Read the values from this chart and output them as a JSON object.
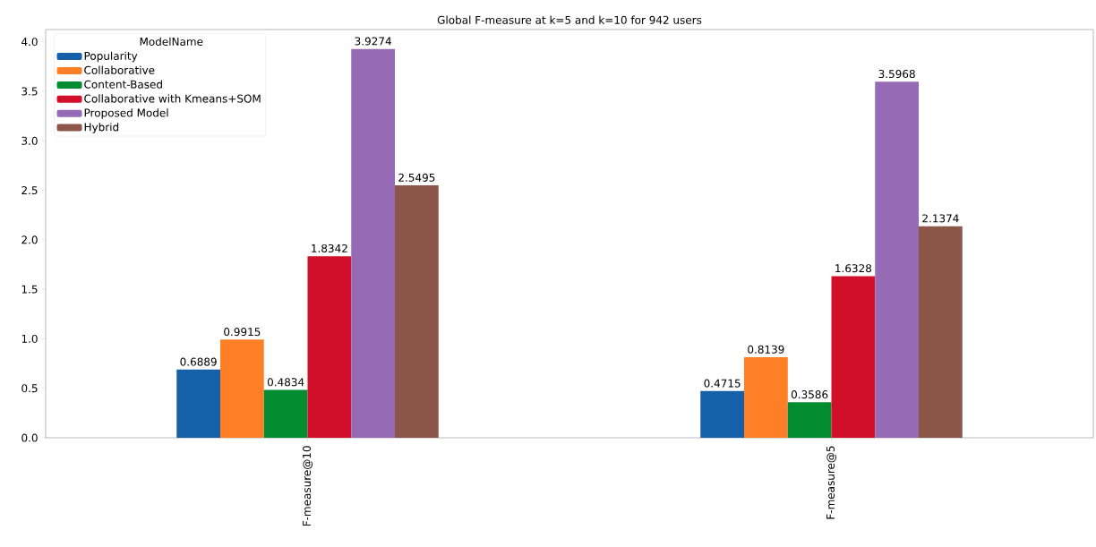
{
  "chart_data": {
    "type": "bar",
    "title": "Global F-measure at k=5 and k=10 for 942 users",
    "categories": [
      "F-measure@10",
      "F-measure@5"
    ],
    "series": [
      {
        "name": "Popularity",
        "color": "#1560a8",
        "values": [
          0.6889,
          0.4715
        ]
      },
      {
        "name": "Collaborative",
        "color": "#ff7f27",
        "values": [
          0.9915,
          0.8139
        ]
      },
      {
        "name": "Content-Based",
        "color": "#038c32",
        "values": [
          0.4834,
          0.3586
        ]
      },
      {
        "name": "Collaborative with Kmeans+SOM",
        "color": "#d20f2b",
        "values": [
          1.8342,
          1.6328
        ]
      },
      {
        "name": "Proposed Model",
        "color": "#966ab4",
        "values": [
          3.9274,
          3.5968
        ]
      },
      {
        "name": "Hybrid",
        "color": "#8c564b",
        "values": [
          2.5495,
          2.1374
        ]
      }
    ],
    "legend_title": "ModelName",
    "legend": "top left",
    "data_labels": true,
    "grid": false,
    "ylim": [
      0,
      4.124
    ],
    "yticks": [
      {
        "value": 0,
        "label": "0.0"
      },
      {
        "value": 0.5,
        "label": "0.5"
      },
      {
        "value": 1,
        "label": "1.0"
      },
      {
        "value": 1.5,
        "label": "1.5"
      },
      {
        "value": 2,
        "label": "2.0"
      },
      {
        "value": 2.5,
        "label": "2.5"
      },
      {
        "value": 3,
        "label": "3.0"
      },
      {
        "value": 3.5,
        "label": "3.5"
      },
      {
        "value": 4,
        "label": "4.0"
      }
    ]
  }
}
